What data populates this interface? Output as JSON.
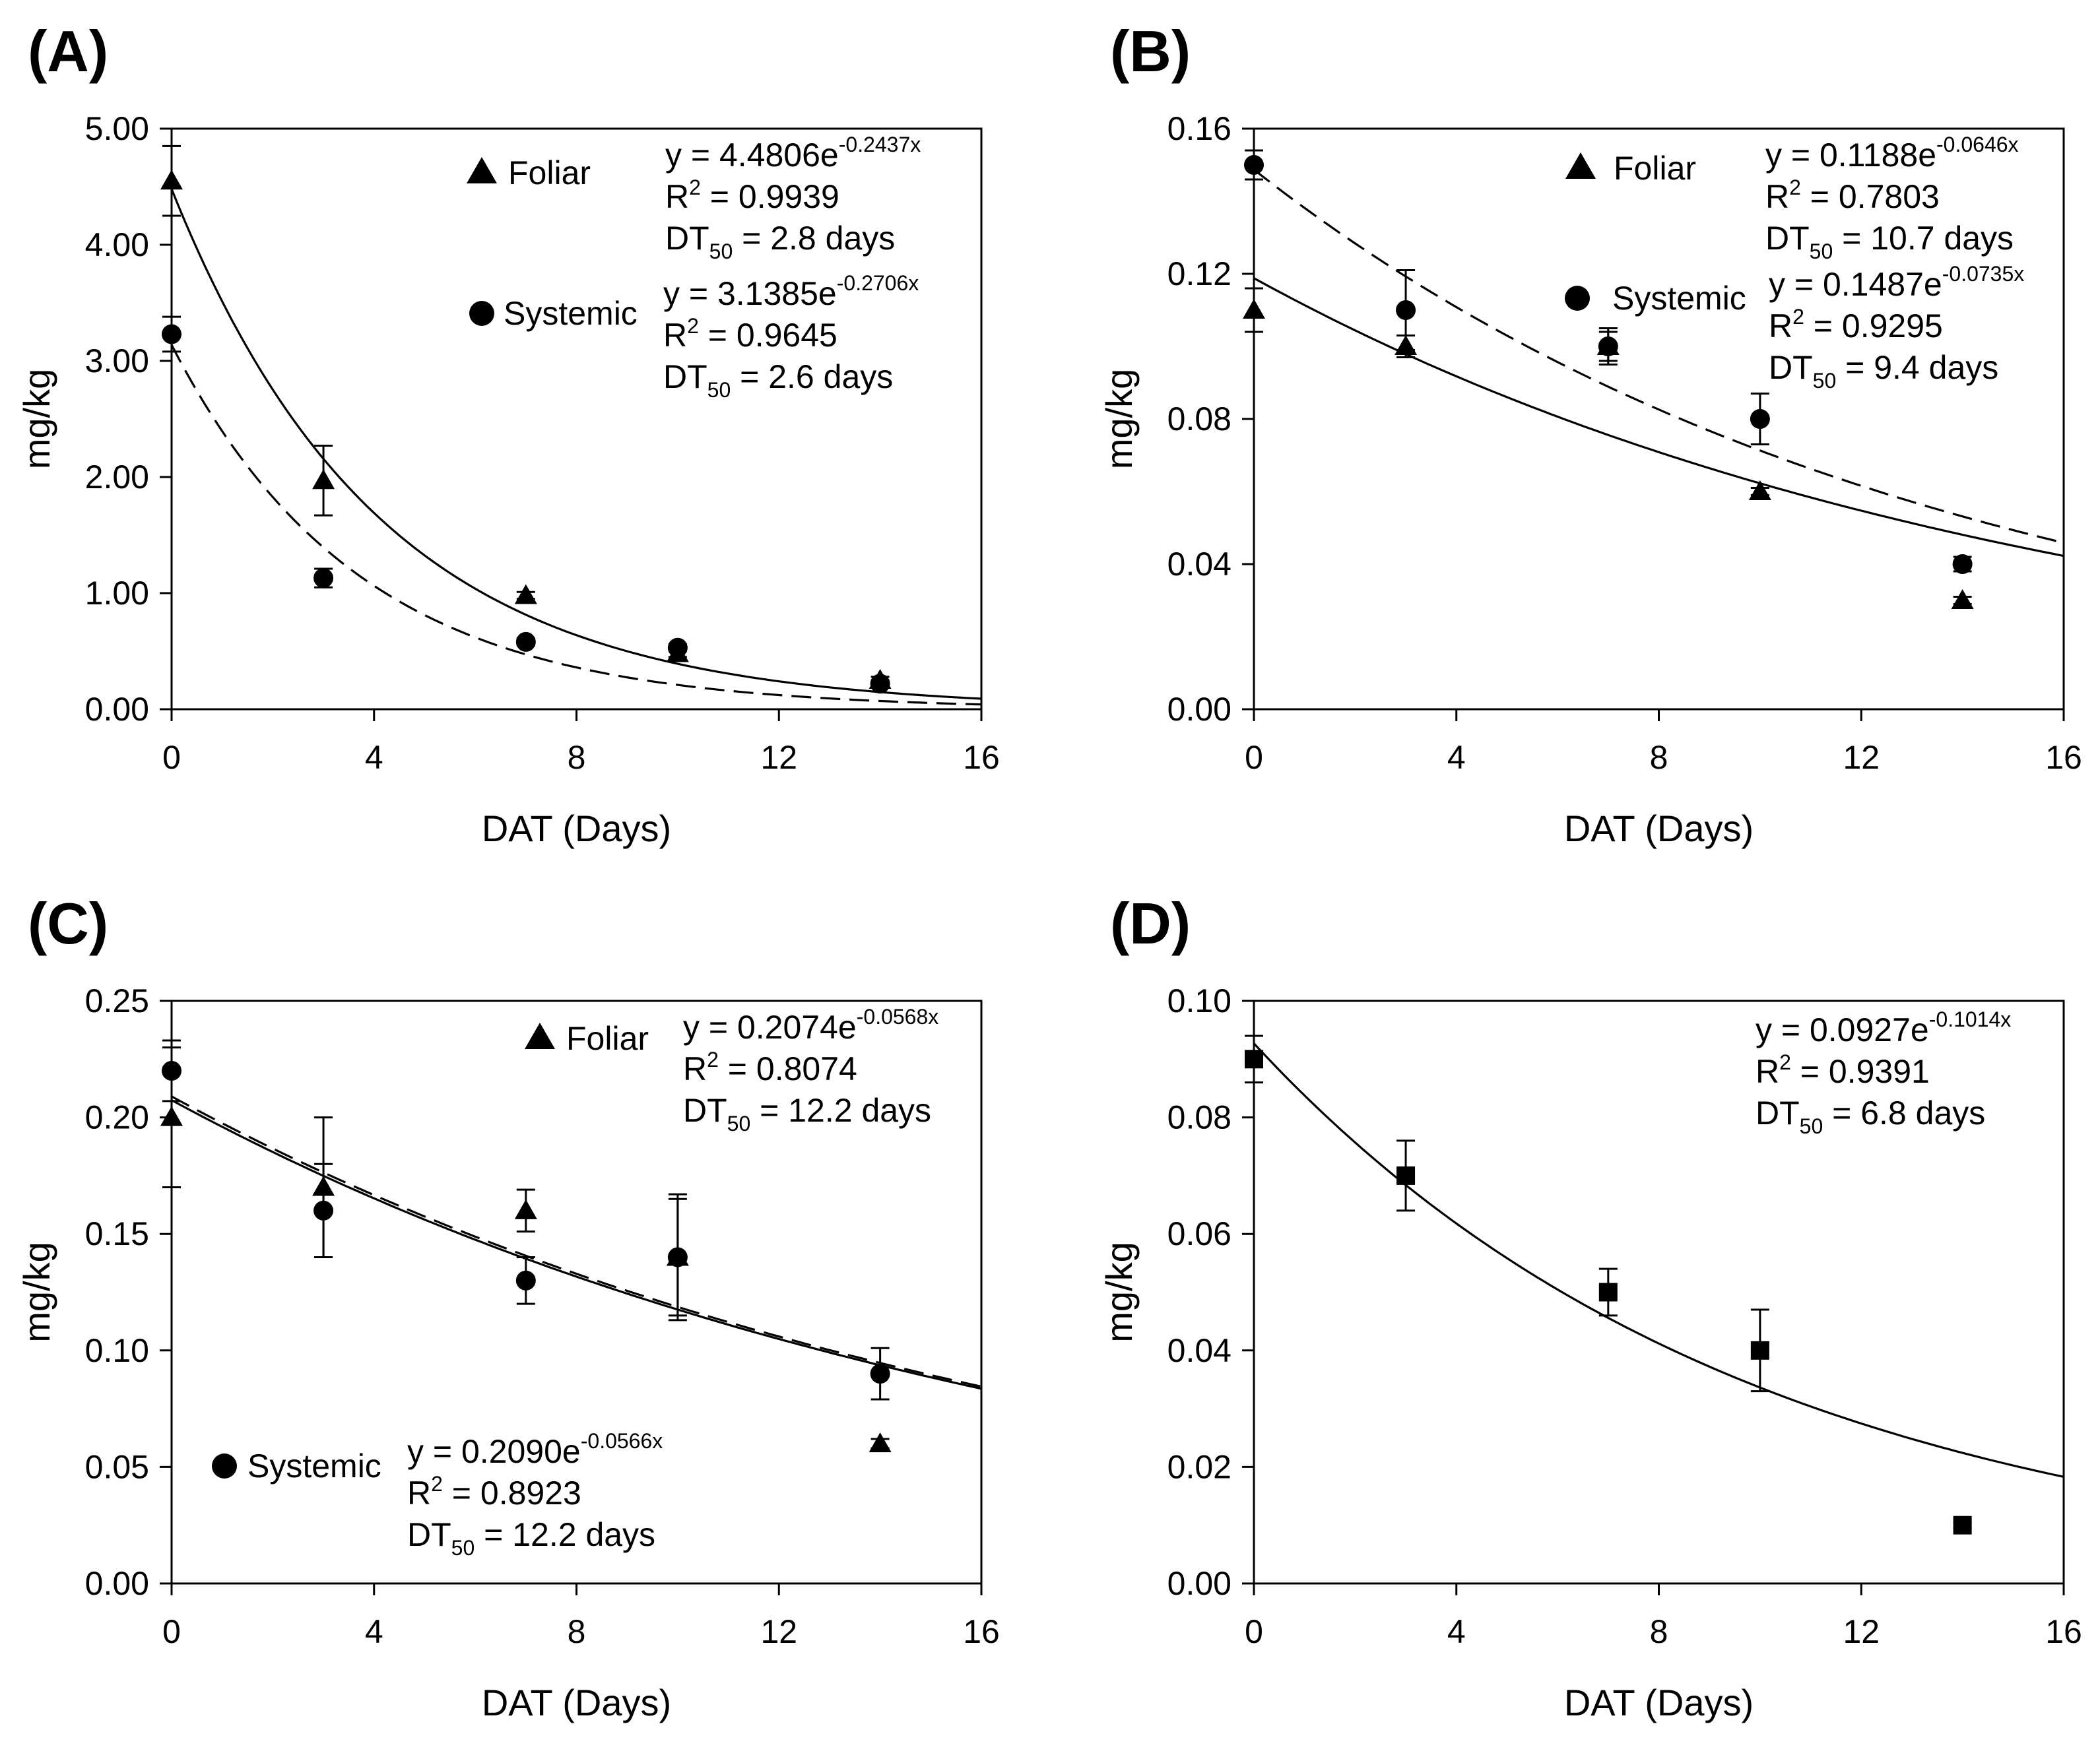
{
  "chart_data": [
    {
      "type": "scatter",
      "panel": "(A)",
      "xlabel": "DAT (Days)",
      "ylabel": "mg/kg",
      "xlim": [
        0,
        16
      ],
      "ylim": [
        0,
        5
      ],
      "xticks": [
        "0",
        "4",
        "8",
        "12",
        "16"
      ],
      "yticks": [
        "0.00",
        "1.00",
        "2.00",
        "3.00",
        "4.00",
        "5.00"
      ],
      "series": [
        {
          "name": "Foliar",
          "marker": "triangle",
          "line": "solid",
          "x": [
            0,
            3,
            7,
            10,
            14
          ],
          "y": [
            4.55,
            1.97,
            0.98,
            0.48,
            0.25
          ],
          "err": [
            0.3,
            0.3,
            0.03,
            0.03,
            0.03
          ],
          "fit": {
            "a": 4.4806,
            "k": 0.2437
          },
          "eq": {
            "y_coef": "4.4806",
            "y_exp": "-0.2437x",
            "r2": "0.9939",
            "dt50": "2.8 days"
          }
        },
        {
          "name": "Systemic",
          "marker": "circle",
          "line": "dashed",
          "x": [
            0,
            3,
            7,
            10,
            14
          ],
          "y": [
            3.23,
            1.13,
            0.58,
            0.53,
            0.22
          ],
          "err": [
            0.15,
            0.08,
            0.03,
            0.03,
            0.03
          ],
          "fit": {
            "a": 3.1385,
            "k": 0.2706
          },
          "eq": {
            "y_coef": "3.1385",
            "y_exp": "-0.2706x",
            "r2": "0.9645",
            "dt50": "2.6 days"
          }
        }
      ]
    },
    {
      "type": "scatter",
      "panel": "(B)",
      "xlabel": "DAT (Days)",
      "ylabel": "mg/kg",
      "xlim": [
        0,
        16
      ],
      "ylim": [
        0,
        0.16
      ],
      "xticks": [
        "0",
        "4",
        "8",
        "12",
        "16"
      ],
      "yticks": [
        "0.00",
        "0.04",
        "0.08",
        "0.12",
        "0.16"
      ],
      "series": [
        {
          "name": "Foliar",
          "marker": "triangle",
          "line": "solid",
          "x": [
            0,
            3,
            7,
            10,
            14
          ],
          "y": [
            0.11,
            0.1,
            0.1,
            0.06,
            0.03
          ],
          "err": [
            0.006,
            0.003,
            0.005,
            0.001,
            0.001
          ],
          "fit": {
            "a": 0.1188,
            "k": 0.0646
          },
          "eq": {
            "y_coef": "0.1188",
            "y_exp": "-0.0646x",
            "r2": "0.7803",
            "dt50": "10.7 days"
          }
        },
        {
          "name": "Systemic",
          "marker": "circle",
          "line": "dashed",
          "x": [
            0,
            3,
            7,
            10,
            14
          ],
          "y": [
            0.15,
            0.11,
            0.1,
            0.08,
            0.04
          ],
          "err": [
            0.004,
            0.011,
            0.004,
            0.007,
            0.002
          ],
          "fit": {
            "a": 0.1487,
            "k": 0.0735
          },
          "eq": {
            "y_coef": "0.1487",
            "y_exp": "-0.0735x",
            "r2": "0.9295",
            "dt50": "9.4 days"
          }
        }
      ]
    },
    {
      "type": "scatter",
      "panel": "(C)",
      "xlabel": "DAT (Days)",
      "ylabel": "mg/kg",
      "xlim": [
        0,
        16
      ],
      "ylim": [
        0,
        0.25
      ],
      "xticks": [
        "0",
        "4",
        "8",
        "12",
        "16"
      ],
      "yticks": [
        "0.00",
        "0.05",
        "0.10",
        "0.15",
        "0.20",
        "0.25"
      ],
      "series": [
        {
          "name": "Foliar",
          "marker": "triangle",
          "line": "solid",
          "x": [
            0,
            3,
            7,
            10,
            14
          ],
          "y": [
            0.2,
            0.17,
            0.16,
            0.14,
            0.06
          ],
          "err": [
            0.03,
            0.03,
            0.009,
            0.027,
            0.002
          ],
          "fit": {
            "a": 0.2074,
            "k": 0.0568
          },
          "eq": {
            "y_coef": "0.2074",
            "y_exp": "-0.0568x",
            "r2": "0.8074",
            "dt50": "12.2 days"
          }
        },
        {
          "name": "Systemic",
          "marker": "circle",
          "line": "dashed",
          "x": [
            0,
            3,
            7,
            10,
            14
          ],
          "y": [
            0.22,
            0.16,
            0.13,
            0.14,
            0.09
          ],
          "err": [
            0.013,
            0.02,
            0.01,
            0.025,
            0.011
          ],
          "fit": {
            "a": 0.209,
            "k": 0.0566
          },
          "eq": {
            "y_coef": "0.2090",
            "y_exp": "-0.0566x",
            "r2": "0.8923",
            "dt50": "12.2 days"
          }
        }
      ]
    },
    {
      "type": "scatter",
      "panel": "(D)",
      "xlabel": "DAT (Days)",
      "ylabel": "mg/kg",
      "xlim": [
        0,
        16
      ],
      "ylim": [
        0,
        0.1
      ],
      "xticks": [
        "0",
        "4",
        "8",
        "12",
        "16"
      ],
      "yticks": [
        "0.00",
        "0.02",
        "0.04",
        "0.06",
        "0.08",
        "0.10"
      ],
      "series": [
        {
          "name": "",
          "marker": "square",
          "line": "solid",
          "x": [
            0,
            3,
            7,
            10,
            14
          ],
          "y": [
            0.09,
            0.07,
            0.05,
            0.04,
            0.01
          ],
          "err": [
            0.004,
            0.006,
            0.004,
            0.007,
            0.0005
          ],
          "fit": {
            "a": 0.0927,
            "k": 0.1014
          },
          "eq": {
            "y_coef": "0.0927",
            "y_exp": "-0.1014x",
            "r2": "0.9391",
            "dt50": "6.8 days"
          }
        }
      ]
    }
  ],
  "labels": {
    "y_eq": "y = ",
    "exp_e": "e",
    "r2": "R",
    "r2_sup": "2",
    "eq_sep": " = ",
    "dt": "DT",
    "dt_sub": "50"
  }
}
